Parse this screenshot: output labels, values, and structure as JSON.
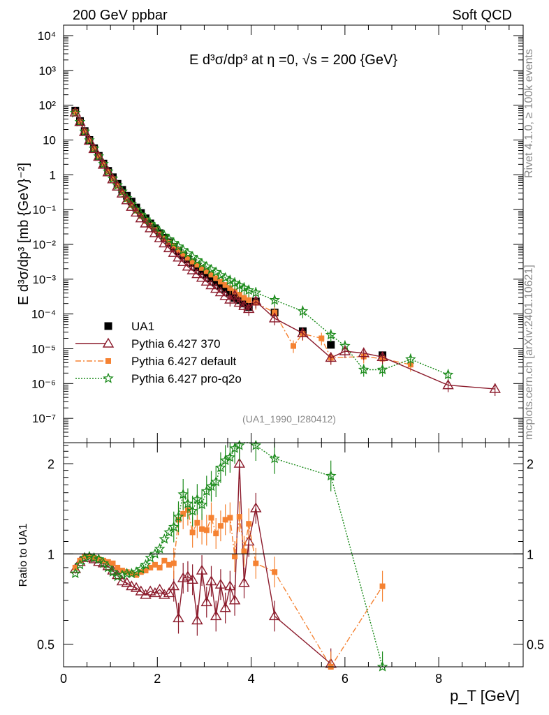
{
  "header": {
    "left": "200 GeV ppbar",
    "right": "Soft QCD"
  },
  "side_labels": {
    "rivet": "Rivet 4.1.0, ≥ 100k events",
    "mcplots": "mcplots.cern.ch [arXiv:2401.10621]"
  },
  "watermark": "(UA1_1990_I280412)",
  "chart_data": [
    {
      "type": "scatter",
      "panel": "main",
      "title": "E  d³σ/dp³ at η =0, √s = 200 {GeV}",
      "ylabel": "E  d³σ/dp³ [mb {GeV}⁻²]",
      "xlabel": "p_T [GeV]",
      "xlim": [
        0,
        9.8
      ],
      "ylim": [
        2e-08,
        20000.0
      ],
      "yscale": "log",
      "xticks": [
        0,
        2,
        4,
        6,
        8
      ],
      "yticks": [
        {
          "v": 10000,
          "label": "10⁴"
        },
        {
          "v": 1000,
          "label": "10³"
        },
        {
          "v": 100,
          "label": "10²"
        },
        {
          "v": 10,
          "label": "10"
        },
        {
          "v": 1,
          "label": "1"
        },
        {
          "v": 0.1,
          "label": "10⁻¹"
        },
        {
          "v": 0.01,
          "label": "10⁻²"
        },
        {
          "v": 0.001,
          "label": "10⁻³"
        },
        {
          "v": 0.0001,
          "label": "10⁻⁴"
        },
        {
          "v": 1e-05,
          "label": "10⁻⁵"
        },
        {
          "v": 1e-06,
          "label": "10⁻⁶"
        },
        {
          "v": 1e-07,
          "label": "10⁻⁷"
        }
      ],
      "legend_position": "bottom-left",
      "series": [
        {
          "name": "UA1",
          "marker": "square",
          "color": "#000000",
          "x": [
            0.25,
            0.35,
            0.45,
            0.55,
            0.65,
            0.75,
            0.85,
            0.95,
            1.05,
            1.15,
            1.25,
            1.35,
            1.45,
            1.55,
            1.65,
            1.75,
            1.85,
            1.95,
            2.05,
            2.15,
            2.25,
            2.35,
            2.45,
            2.55,
            2.65,
            2.75,
            2.85,
            2.95,
            3.05,
            3.15,
            3.25,
            3.35,
            3.45,
            3.55,
            3.65,
            3.75,
            3.85,
            3.95,
            4.1,
            4.5,
            5.1,
            5.7,
            6.8
          ],
          "y": [
            70,
            35,
            18,
            10,
            5.8,
            3.5,
            2.1,
            1.3,
            0.85,
            0.55,
            0.37,
            0.25,
            0.17,
            0.115,
            0.08,
            0.056,
            0.04,
            0.029,
            0.021,
            0.0155,
            0.0115,
            0.0085,
            0.0064,
            0.0048,
            0.0037,
            0.0029,
            0.0022,
            0.0017,
            0.00135,
            0.00105,
            0.00082,
            0.00065,
            0.00052,
            0.00041,
            0.00029,
            0.00025,
            0.0002,
            0.00016,
            0.00023,
            0.00011,
            3.2e-05,
            1.3e-05,
            6.5e-06
          ]
        },
        {
          "name": "Pythia 6.427 370",
          "marker": "triangle",
          "color": "#8b1a2b",
          "line": "solid",
          "x": [
            0.25,
            0.35,
            0.45,
            0.55,
            0.65,
            0.75,
            0.85,
            0.95,
            1.05,
            1.15,
            1.25,
            1.35,
            1.45,
            1.55,
            1.65,
            1.75,
            1.85,
            1.95,
            2.05,
            2.15,
            2.25,
            2.35,
            2.45,
            2.55,
            2.65,
            2.75,
            2.85,
            2.95,
            3.05,
            3.15,
            3.25,
            3.35,
            3.45,
            3.55,
            3.65,
            3.75,
            3.85,
            3.95,
            4.1,
            4.5,
            5.1,
            5.7,
            6.0,
            6.4,
            6.8,
            8.2,
            9.2
          ],
          "y": [
            62,
            33,
            17,
            9.5,
            5.5,
            3.3,
            1.95,
            1.18,
            0.74,
            0.46,
            0.29,
            0.185,
            0.12,
            0.082,
            0.056,
            0.04,
            0.029,
            0.021,
            0.015,
            0.0107,
            0.0078,
            0.0057,
            0.0042,
            0.0031,
            0.0023,
            0.0018,
            0.0014,
            0.0011,
            0.00085,
            0.00067,
            0.00053,
            0.00042,
            0.00033,
            0.00026,
            0.00034,
            0.00021,
            0.00017,
            0.00014,
            0.00023,
            7.5e-05,
            2.8e-05,
            5.5e-06,
            8.5e-06,
            7.5e-06,
            5.8e-06,
            9e-07,
            7e-07
          ]
        },
        {
          "name": "Pythia 6.427 default",
          "marker": "square-small",
          "color": "#f58232",
          "line": "dashdot",
          "x": [
            0.25,
            0.35,
            0.45,
            0.55,
            0.65,
            0.75,
            0.85,
            0.95,
            1.05,
            1.15,
            1.25,
            1.35,
            1.45,
            1.55,
            1.65,
            1.75,
            1.85,
            1.95,
            2.05,
            2.15,
            2.25,
            2.35,
            2.45,
            2.55,
            2.65,
            2.75,
            2.85,
            2.95,
            3.05,
            3.15,
            3.25,
            3.35,
            3.45,
            3.55,
            3.65,
            3.75,
            3.85,
            3.95,
            4.1,
            4.5,
            4.9,
            5.1,
            5.5,
            5.7,
            6.4,
            6.8,
            7.4
          ],
          "y": [
            64,
            34,
            17.5,
            9.8,
            5.6,
            3.4,
            2.0,
            1.22,
            0.76,
            0.48,
            0.31,
            0.2,
            0.135,
            0.093,
            0.065,
            0.047,
            0.035,
            0.026,
            0.0195,
            0.0148,
            0.0115,
            0.0088,
            0.0068,
            0.0053,
            0.0041,
            0.0032,
            0.0026,
            0.0021,
            0.0017,
            0.00135,
            0.00107,
            0.00085,
            0.00068,
            0.00055,
            0.00044,
            0.00036,
            0.00029,
            0.00025,
            0.00021,
            0.00011,
            1.2e-05,
            2.7e-05,
            2e-05,
            5.5e-06,
            6e-06,
            5.2e-06,
            3.5e-06
          ]
        },
        {
          "name": "Pythia 6.427 pro-q2o",
          "marker": "star",
          "color": "#1a8a1a",
          "line": "dotted",
          "x": [
            0.25,
            0.35,
            0.45,
            0.55,
            0.65,
            0.75,
            0.85,
            0.95,
            1.05,
            1.15,
            1.25,
            1.35,
            1.45,
            1.55,
            1.65,
            1.75,
            1.85,
            1.95,
            2.05,
            2.15,
            2.25,
            2.35,
            2.45,
            2.55,
            2.65,
            2.75,
            2.85,
            2.95,
            3.05,
            3.15,
            3.25,
            3.35,
            3.45,
            3.55,
            3.65,
            3.75,
            3.85,
            3.95,
            4.1,
            4.5,
            5.1,
            5.7,
            6.0,
            6.4,
            6.8,
            7.4,
            8.2
          ],
          "y": [
            60,
            33,
            17.5,
            9.8,
            5.7,
            3.4,
            2.05,
            1.25,
            0.78,
            0.5,
            0.33,
            0.215,
            0.145,
            0.1,
            0.071,
            0.052,
            0.039,
            0.03,
            0.023,
            0.0178,
            0.014,
            0.011,
            0.0087,
            0.0069,
            0.0055,
            0.0044,
            0.0035,
            0.0028,
            0.0023,
            0.0019,
            0.0016,
            0.0013,
            0.0011,
            0.00092,
            0.00078,
            0.00066,
            0.00056,
            0.00048,
            0.00041,
            0.00025,
            0.00012,
            2.5e-05,
            1.2e-05,
            2.5e-06,
            2.5e-06,
            5e-06,
            1.8e-06
          ]
        }
      ]
    },
    {
      "type": "line",
      "panel": "ratio",
      "ylabel": "Ratio to UA1",
      "xlabel": "p_T [GeV]",
      "xlim": [
        0,
        9.8
      ],
      "ylim": [
        0.42,
        2.35
      ],
      "yscale": "log",
      "yticks": [
        {
          "v": 0.5,
          "label": "0.5"
        },
        {
          "v": 1,
          "label": "1"
        },
        {
          "v": 2,
          "label": "2"
        }
      ],
      "reference_line": 1,
      "series": [
        {
          "name": "Pythia 6.427 370",
          "x": [
            0.25,
            0.35,
            0.45,
            0.55,
            0.65,
            0.75,
            0.85,
            0.95,
            1.05,
            1.15,
            1.25,
            1.35,
            1.45,
            1.55,
            1.65,
            1.75,
            1.85,
            1.95,
            2.05,
            2.15,
            2.25,
            2.35,
            2.45,
            2.55,
            2.65,
            2.75,
            2.85,
            2.95,
            3.05,
            3.15,
            3.25,
            3.35,
            3.45,
            3.55,
            3.65,
            3.75,
            3.85,
            3.95,
            4.1,
            4.5,
            5.7
          ],
          "y": [
            0.89,
            0.94,
            0.97,
            0.97,
            0.96,
            0.94,
            0.93,
            0.91,
            0.88,
            0.85,
            0.81,
            0.8,
            0.78,
            0.77,
            0.75,
            0.73,
            0.75,
            0.74,
            0.76,
            0.73,
            0.74,
            0.78,
            0.61,
            0.83,
            0.84,
            0.82,
            0.6,
            0.88,
            0.69,
            0.81,
            0.62,
            0.79,
            0.66,
            0.78,
            0.7,
            2.0,
            0.8,
            1.1,
            1.42,
            0.62,
            0.43
          ]
        },
        {
          "name": "Pythia 6.427 default",
          "x": [
            0.25,
            0.35,
            0.45,
            0.55,
            0.65,
            0.75,
            0.85,
            0.95,
            1.05,
            1.15,
            1.25,
            1.35,
            1.45,
            1.55,
            1.65,
            1.75,
            1.85,
            1.95,
            2.05,
            2.15,
            2.25,
            2.35,
            2.45,
            2.55,
            2.65,
            2.75,
            2.85,
            2.95,
            3.05,
            3.15,
            3.25,
            3.35,
            3.45,
            3.55,
            3.65,
            3.75,
            3.85,
            3.95,
            4.1,
            4.5,
            5.7,
            6.8
          ],
          "y": [
            0.9,
            0.95,
            0.98,
            0.98,
            0.97,
            0.96,
            0.95,
            0.94,
            0.93,
            0.9,
            0.88,
            0.87,
            0.86,
            0.85,
            0.87,
            0.88,
            0.9,
            0.92,
            0.9,
            0.95,
            0.92,
            0.93,
            1.3,
            1.36,
            1.4,
            1.18,
            1.27,
            1.21,
            1.2,
            1.32,
            1.17,
            1.24,
            1.3,
            1.32,
            0.98,
            1.33,
            1.02,
            1.26,
            0.93,
            0.87,
            0.42,
            0.78
          ]
        },
        {
          "name": "Pythia 6.427 pro-q2o",
          "x": [
            0.25,
            0.35,
            0.45,
            0.55,
            0.65,
            0.75,
            0.85,
            0.95,
            1.05,
            1.15,
            1.25,
            1.35,
            1.45,
            1.55,
            1.65,
            1.75,
            1.85,
            1.95,
            2.05,
            2.15,
            2.25,
            2.35,
            2.45,
            2.55,
            2.65,
            2.75,
            2.85,
            2.95,
            3.05,
            3.15,
            3.25,
            3.35,
            3.45,
            3.55,
            3.65,
            3.75,
            3.85,
            3.95,
            4.1,
            4.5,
            5.7,
            6.8
          ],
          "y": [
            0.86,
            0.92,
            0.97,
            0.98,
            0.97,
            0.96,
            0.93,
            0.9,
            0.87,
            0.84,
            0.85,
            0.86,
            0.86,
            0.87,
            0.89,
            0.92,
            0.97,
            1.0,
            1.04,
            1.12,
            1.18,
            1.23,
            1.33,
            1.58,
            1.47,
            1.39,
            1.52,
            1.46,
            1.62,
            1.68,
            1.74,
            1.94,
            2.05,
            2.1,
            2.25,
            2.3,
            2.4,
            2.45,
            2.3,
            2.08,
            1.82,
            0.42
          ]
        }
      ]
    }
  ]
}
